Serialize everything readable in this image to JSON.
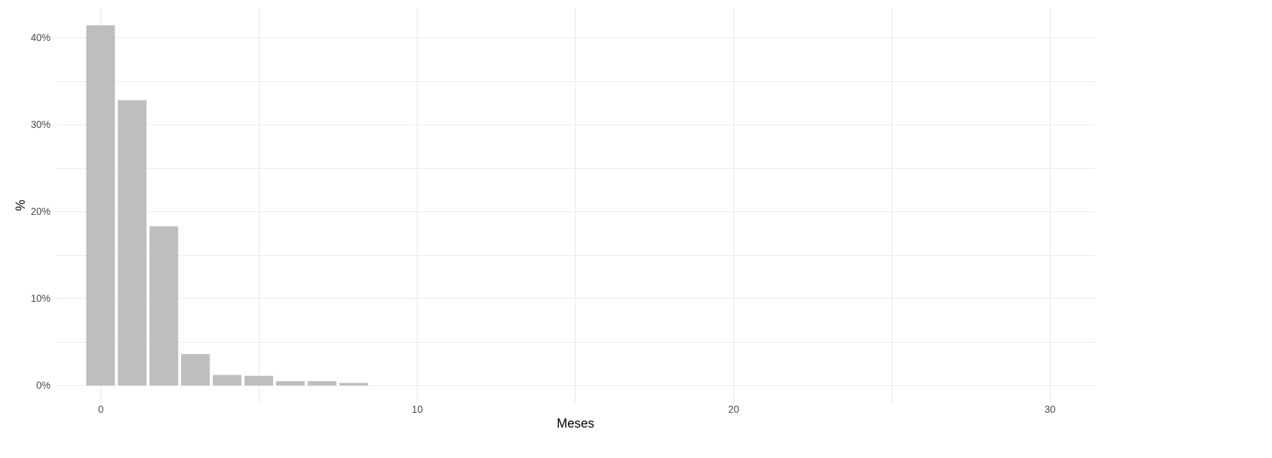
{
  "chart_data": {
    "type": "bar",
    "xlabel": "Meses",
    "ylabel": "%",
    "x": [
      0,
      1,
      2,
      3,
      4,
      5,
      6,
      7,
      8
    ],
    "values": [
      41.4,
      32.8,
      18.3,
      3.6,
      1.2,
      1.1,
      0.5,
      0.5,
      0.3
    ],
    "color": "#bebebe",
    "xlim": [
      -1.3,
      31.3
    ],
    "xticks": [
      0,
      {
        "value": 5,
        "label": null
      },
      10,
      {
        "value": 15,
        "label": null
      },
      20,
      {
        "value": 25,
        "label": null
      },
      30
    ],
    "ylim": [
      -2,
      43.5
    ],
    "yticks": [
      {
        "value": 0,
        "label": "0%"
      },
      {
        "value": 5,
        "label": null
      },
      {
        "value": 10,
        "label": "10%"
      },
      {
        "value": 15,
        "label": null
      },
      {
        "value": 20,
        "label": "20%"
      },
      {
        "value": 25,
        "label": null
      },
      {
        "value": 30,
        "label": "30%"
      },
      {
        "value": 35,
        "label": null
      },
      {
        "value": 40,
        "label": "40%"
      }
    ],
    "grid": true
  }
}
